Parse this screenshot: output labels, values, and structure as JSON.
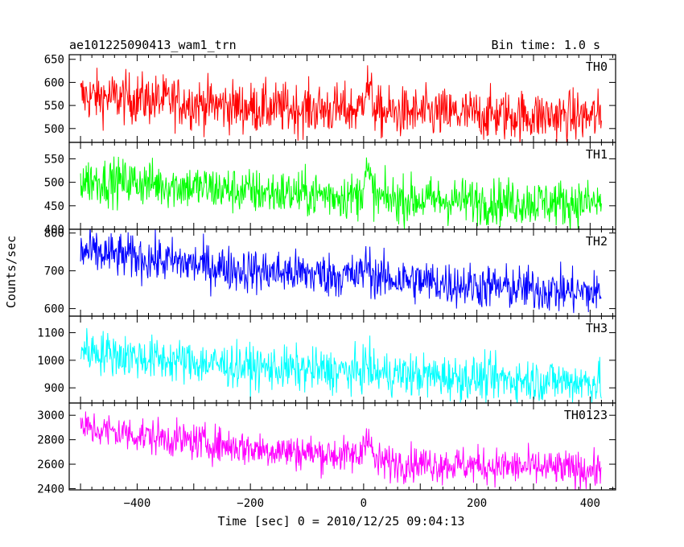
{
  "header": {
    "title": "ae101225090413_wam1_trn",
    "bin_time": "Bin time: 1.0 s"
  },
  "chart_data": {
    "type": "line",
    "ylabel": "Counts/sec",
    "xlabel": "Time [sec] 0 = 2010/12/25 09:04:13",
    "xlim": [
      -520,
      445
    ],
    "x_ticks": [
      -400,
      -200,
      0,
      200,
      400
    ],
    "x_tick_labels": [
      "−400",
      "−200",
      "0",
      "200",
      "400"
    ],
    "x_range": [
      -500,
      420
    ],
    "panels": [
      {
        "name": "TH0",
        "color": "#ff0000",
        "ylim": [
          470,
          660
        ],
        "y_ticks": [
          500,
          550,
          600,
          650
        ],
        "profile": [
          [
            -500,
            570
          ],
          [
            -400,
            565
          ],
          [
            -200,
            545
          ],
          [
            0,
            540
          ],
          [
            20,
            535
          ],
          [
            200,
            530
          ],
          [
            420,
            525
          ]
        ],
        "noise": 28,
        "burst": {
          "x": 5,
          "width": 18,
          "height": 60
        }
      },
      {
        "name": "TH1",
        "color": "#00ff00",
        "ylim": [
          400,
          585
        ],
        "y_ticks": [
          400,
          450,
          500,
          550
        ],
        "profile": [
          [
            -500,
            505
          ],
          [
            -400,
            500
          ],
          [
            -200,
            480
          ],
          [
            0,
            470
          ],
          [
            20,
            465
          ],
          [
            200,
            460
          ],
          [
            420,
            455
          ]
        ],
        "noise": 25,
        "burst": {
          "x": 5,
          "width": 18,
          "height": 55
        }
      },
      {
        "name": "TH2",
        "color": "#0000ff",
        "ylim": [
          580,
          810
        ],
        "y_ticks": [
          600,
          700,
          800
        ],
        "profile": [
          [
            -500,
            750
          ],
          [
            -400,
            735
          ],
          [
            -200,
            700
          ],
          [
            0,
            685
          ],
          [
            200,
            660
          ],
          [
            420,
            640
          ]
        ],
        "noise": 30,
        "burst": {
          "x": 5,
          "width": 15,
          "height": 35
        }
      },
      {
        "name": "TH3",
        "color": "#00ffff",
        "ylim": [
          845,
          1160
        ],
        "y_ticks": [
          900,
          1000,
          1100
        ],
        "profile": [
          [
            -500,
            1040
          ],
          [
            -400,
            1010
          ],
          [
            -200,
            975
          ],
          [
            0,
            955
          ],
          [
            200,
            935
          ],
          [
            420,
            920
          ]
        ],
        "noise": 40,
        "burst": {
          "x": 5,
          "width": 15,
          "height": 30
        }
      },
      {
        "name": "TH0123",
        "color": "#ff00ff",
        "ylim": [
          2390,
          3100
        ],
        "y_ticks": [
          2400,
          2600,
          2800,
          3000
        ],
        "profile": [
          [
            -500,
            2900
          ],
          [
            -400,
            2840
          ],
          [
            -200,
            2730
          ],
          [
            0,
            2660
          ],
          [
            20,
            2620
          ],
          [
            200,
            2590
          ],
          [
            420,
            2550
          ]
        ],
        "noise": 75,
        "burst": {
          "x": 5,
          "width": 15,
          "height": 220
        }
      }
    ]
  }
}
